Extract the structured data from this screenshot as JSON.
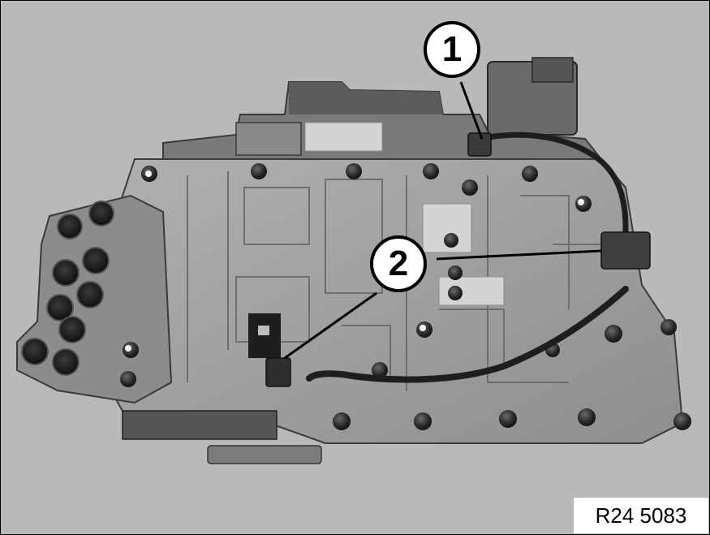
{
  "figure": {
    "callouts": [
      {
        "number": "1"
      },
      {
        "number": "2"
      }
    ],
    "reference_code": "R24 5083",
    "colors": {
      "background": "#b9b9b9",
      "housing": "#a2a2a2",
      "housing_dark": "#5a5a5a",
      "bolt": "#2e2e2e",
      "line": "#000000",
      "callout_fill": "#ffffff"
    }
  }
}
